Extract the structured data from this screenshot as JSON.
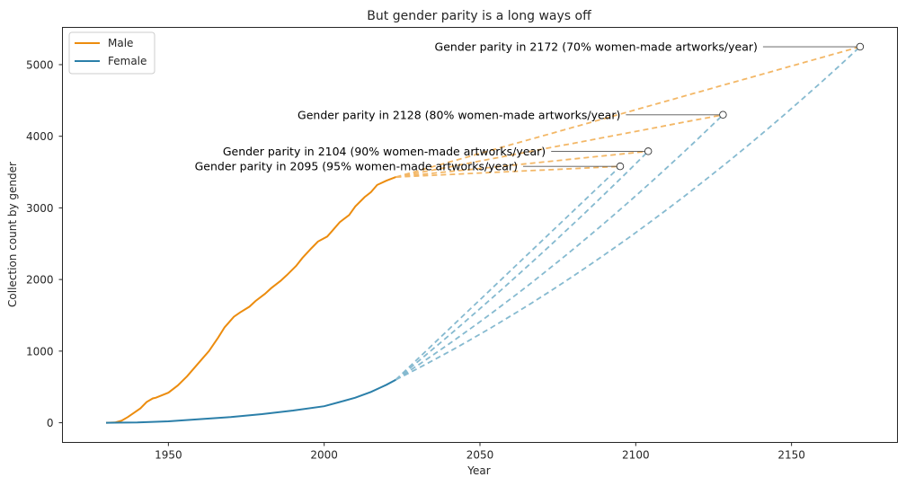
{
  "chart_data": {
    "type": "line",
    "title": "But gender parity is a long ways off",
    "xlabel": "Year",
    "ylabel": "Collection count by gender",
    "xlim": [
      1916,
      2184
    ],
    "ylim": [
      -275,
      5520
    ],
    "xticks": [
      1950,
      2000,
      2050,
      2100,
      2150
    ],
    "yticks": [
      0,
      1000,
      2000,
      3000,
      4000,
      5000
    ],
    "grid": false,
    "legend_position": "top-left",
    "colors": {
      "male": "#ec8c0e",
      "female": "#2b7fa9",
      "male_projection": "#f3b766",
      "female_projection": "#86bad0"
    },
    "series": [
      {
        "name": "Male",
        "x": [
          1930,
          1933,
          1935,
          1937,
          1939,
          1941,
          1943,
          1945,
          1946,
          1950,
          1953,
          1956,
          1958,
          1961,
          1963,
          1966,
          1968,
          1971,
          1973,
          1976,
          1978,
          1981,
          1983,
          1986,
          1988,
          1991,
          1993,
          1996,
          1998,
          2001,
          2003,
          2005,
          2008,
          2010,
          2013,
          2015,
          2017,
          2020,
          2023
        ],
        "values": [
          0,
          5,
          30,
          80,
          140,
          200,
          290,
          340,
          350,
          420,
          520,
          650,
          750,
          900,
          1000,
          1190,
          1330,
          1480,
          1540,
          1620,
          1700,
          1800,
          1880,
          1980,
          2060,
          2190,
          2300,
          2440,
          2530,
          2600,
          2700,
          2800,
          2900,
          3020,
          3150,
          3220,
          3320,
          3380,
          3430
        ]
      },
      {
        "name": "Female",
        "x": [
          1930,
          1940,
          1950,
          1960,
          1970,
          1980,
          1990,
          2000,
          2005,
          2010,
          2015,
          2018,
          2020,
          2023
        ],
        "values": [
          0,
          5,
          20,
          50,
          80,
          120,
          170,
          230,
          290,
          350,
          430,
          490,
          530,
          600
        ]
      }
    ],
    "projections": [
      {
        "label": "Gender parity in 2095 (95% women-made artworks/year)",
        "year": 2095,
        "value": 3580
      },
      {
        "label": "Gender parity in 2104 (90% women-made artworks/year)",
        "year": 2104,
        "value": 3790
      },
      {
        "label": "Gender parity in 2128 (80% women-made artworks/year)",
        "year": 2128,
        "value": 4300
      },
      {
        "label": "Gender parity in 2172 (70% women-made artworks/year)",
        "year": 2172,
        "value": 5250
      }
    ]
  }
}
